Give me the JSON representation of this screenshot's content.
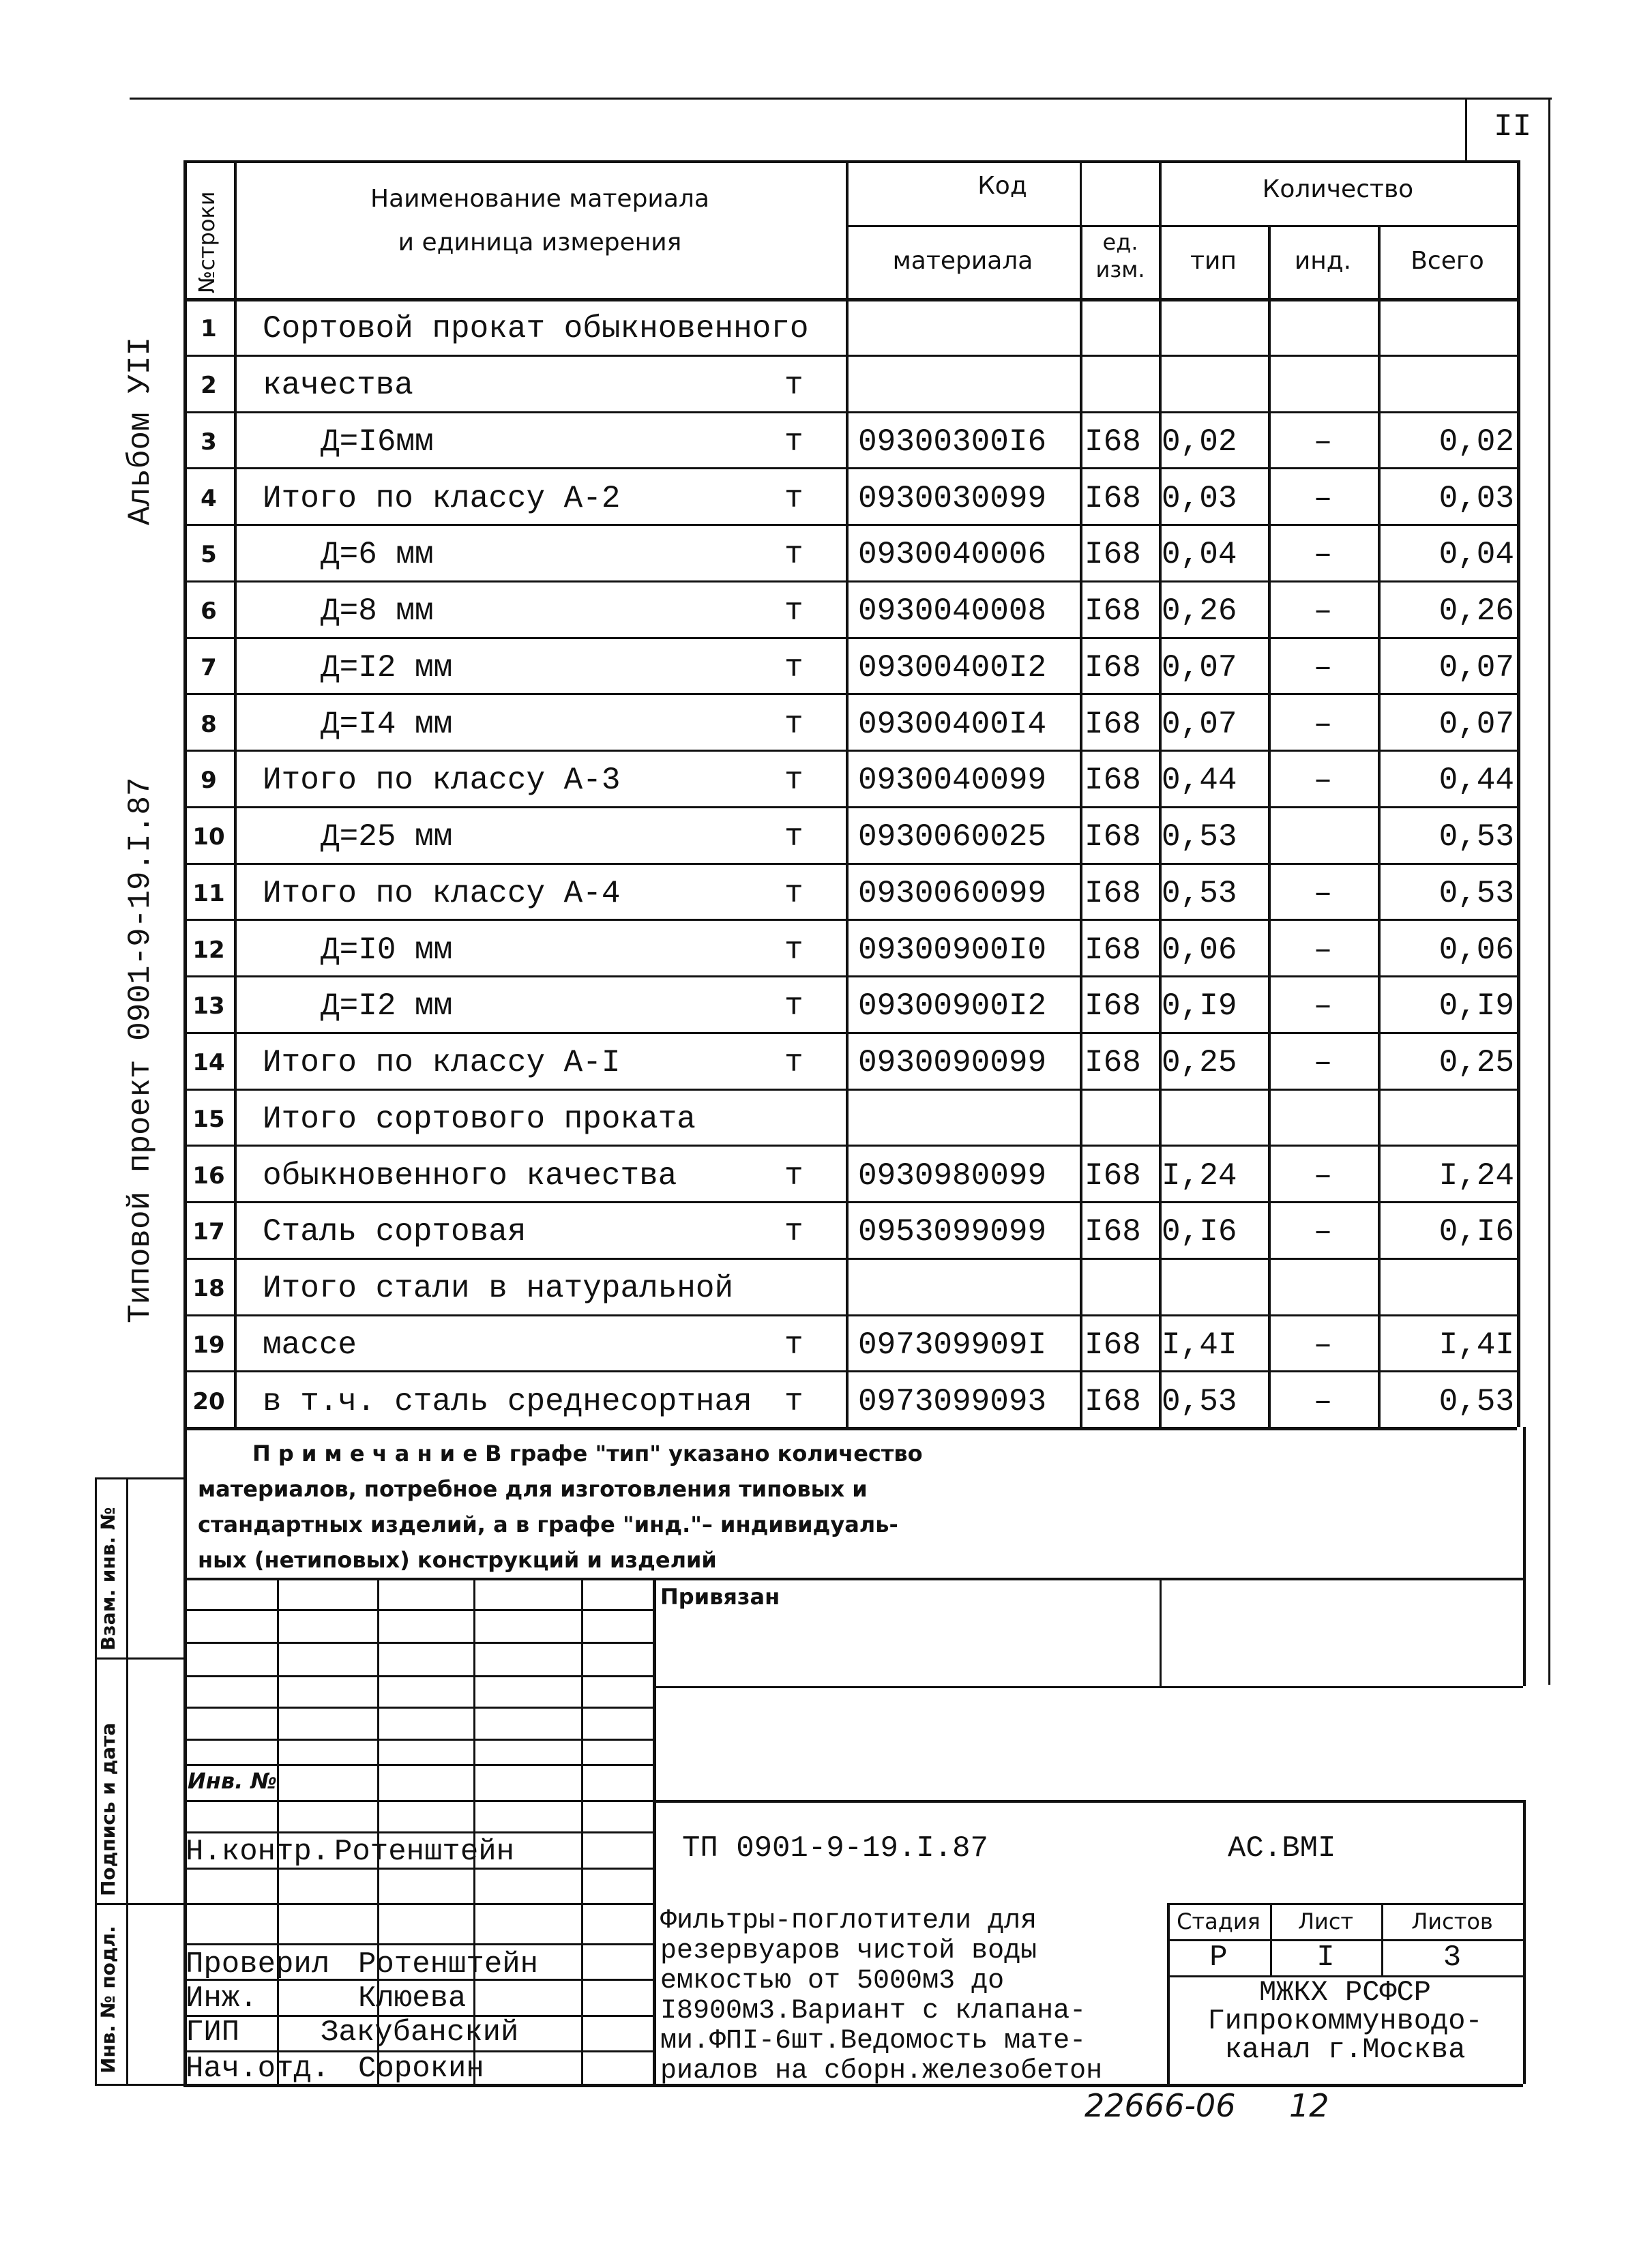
{
  "sheet_number": "II",
  "side": {
    "album": "Альбом УII",
    "project": "Типовой проект 0901-9-19.I.87",
    "strip_labels": [
      "Инв. № подл.",
      "Подпись и дата",
      "Взам. инв. №"
    ]
  },
  "table": {
    "headers": {
      "row_no": "№строки",
      "name": "Наименование материала\nи единица измерения",
      "code": "Код",
      "code_material": "материала",
      "code_unit": "ед. изм.",
      "quantity": "Количество",
      "q_type": "тип",
      "q_ind": "инд.",
      "q_total": "Всего"
    },
    "rows": [
      {
        "n": "1",
        "name": "Сортовой прокат обыкновенного",
        "indent": false,
        "unit": "",
        "code": "",
        "ucode": "",
        "tip": "",
        "ind": "",
        "total": ""
      },
      {
        "n": "2",
        "name": "качества",
        "indent": false,
        "unit": "т",
        "code": "",
        "ucode": "",
        "tip": "",
        "ind": "",
        "total": ""
      },
      {
        "n": "3",
        "name": "Д=I6мм",
        "indent": true,
        "unit": "т",
        "code": "09300300I6",
        "ucode": "I68",
        "tip": "0,02",
        "ind": "–",
        "total": "0,02"
      },
      {
        "n": "4",
        "name": "Итого по классу А-2",
        "indent": false,
        "unit": "т",
        "code": "0930030099",
        "ucode": "I68",
        "tip": "0,03",
        "ind": "–",
        "total": "0,03"
      },
      {
        "n": "5",
        "name": "Д=6 мм",
        "indent": true,
        "unit": "т",
        "code": "0930040006",
        "ucode": "I68",
        "tip": "0,04",
        "ind": "–",
        "total": "0,04"
      },
      {
        "n": "6",
        "name": "Д=8 мм",
        "indent": true,
        "unit": "т",
        "code": "0930040008",
        "ucode": "I68",
        "tip": "0,26",
        "ind": "–",
        "total": "0,26"
      },
      {
        "n": "7",
        "name": "Д=I2 мм",
        "indent": true,
        "unit": "т",
        "code": "09300400I2",
        "ucode": "I68",
        "tip": "0,07",
        "ind": "–",
        "total": "0,07"
      },
      {
        "n": "8",
        "name": "Д=I4 мм",
        "indent": true,
        "unit": "т",
        "code": "09300400I4",
        "ucode": "I68",
        "tip": "0,07",
        "ind": "–",
        "total": "0,07"
      },
      {
        "n": "9",
        "name": "Итого по классу А-3",
        "indent": false,
        "unit": "т",
        "code": "0930040099",
        "ucode": "I68",
        "tip": "0,44",
        "ind": "–",
        "total": "0,44"
      },
      {
        "n": "10",
        "name": "Д=25 мм",
        "indent": true,
        "unit": "т",
        "code": "0930060025",
        "ucode": "I68",
        "tip": "0,53",
        "ind": "",
        "total": "0,53"
      },
      {
        "n": "11",
        "name": "Итого по классу А-4",
        "indent": false,
        "unit": "т",
        "code": "0930060099",
        "ucode": "I68",
        "tip": "0,53",
        "ind": "–",
        "total": "0,53"
      },
      {
        "n": "12",
        "name": "Д=I0 мм",
        "indent": true,
        "unit": "т",
        "code": "09300900I0",
        "ucode": "I68",
        "tip": "0,06",
        "ind": "–",
        "total": "0,06"
      },
      {
        "n": "13",
        "name": "Д=I2 мм",
        "indent": true,
        "unit": "т",
        "code": "09300900I2",
        "ucode": "I68",
        "tip": "0,I9",
        "ind": "–",
        "total": "0,I9"
      },
      {
        "n": "14",
        "name": "Итого по классу А-I",
        "indent": false,
        "unit": "т",
        "code": "0930090099",
        "ucode": "I68",
        "tip": "0,25",
        "ind": "–",
        "total": "0,25"
      },
      {
        "n": "15",
        "name": "Итого сортового проката",
        "indent": false,
        "unit": "",
        "code": "",
        "ucode": "",
        "tip": "",
        "ind": "",
        "total": ""
      },
      {
        "n": "16",
        "name": "обыкновенного качества",
        "indent": false,
        "unit": "т",
        "code": "0930980099",
        "ucode": "I68",
        "tip": "I,24",
        "ind": "–",
        "total": "I,24"
      },
      {
        "n": "17",
        "name": "Сталь сортовая",
        "indent": false,
        "unit": "т",
        "code": "0953099099",
        "ucode": "I68",
        "tip": "0,I6",
        "ind": "–",
        "total": "0,I6"
      },
      {
        "n": "18",
        "name": "Итого стали в натуральной",
        "indent": false,
        "unit": "",
        "code": "",
        "ucode": "",
        "tip": "",
        "ind": "",
        "total": ""
      },
      {
        "n": "19",
        "name": "массе",
        "indent": false,
        "unit": "т",
        "code": "097309909I",
        "ucode": "I68",
        "tip": "I,4I",
        "ind": "–",
        "total": "I,4I"
      },
      {
        "n": "20",
        "name": "в т.ч. сталь среднесортная",
        "indent": false,
        "unit": "т",
        "code": "0973099093",
        "ucode": "I68",
        "tip": "0,53",
        "ind": "–",
        "total": "0,53"
      }
    ]
  },
  "note": {
    "title": "П р и м е ч а н и е",
    "lines": [
      "В графе \"тип\" указано количество",
      "материалов, потребное для изготовления типовых и",
      "стандартных изделий, а в графе \"инд.\"– индивидуаль-",
      "ных (нетиповых) конструкций и изделий"
    ]
  },
  "stamp": {
    "privyazan": "Привязан",
    "inv_no": "Инв. №",
    "doc_code": "ТП 0901-9-19.I.87",
    "doc_mark": "АС.ВМI",
    "signers": [
      {
        "role": "Н.контр.",
        "name": "Ротенштейн"
      },
      {
        "role": "Проверил",
        "name": "Ротенштейн"
      },
      {
        "role": "Инж.",
        "name": "Клюева"
      },
      {
        "role": "ГИП",
        "name": "Закубанский"
      },
      {
        "role": "Нач.отд.",
        "name": "Сорокин"
      }
    ],
    "description": [
      "Фильтры-поглотители для",
      "резервуаров чистой воды",
      "емкостью от 5000м3 до",
      "I8900м3.Вариант с клапана-",
      "ми.ФПI-6шт.Ведомость мате-",
      "риалов на сборн.железобетон"
    ],
    "stage_label": "Стадия",
    "sheet_label": "Лист",
    "sheets_label": "Листов",
    "stage": "Р",
    "sheet": "I",
    "sheets": "3",
    "org": [
      "МЖКХ РСФСР",
      "Гипрокоммунводо-",
      "канал г.Москва"
    ],
    "footer_code": "22666-06",
    "footer_page": "12"
  }
}
